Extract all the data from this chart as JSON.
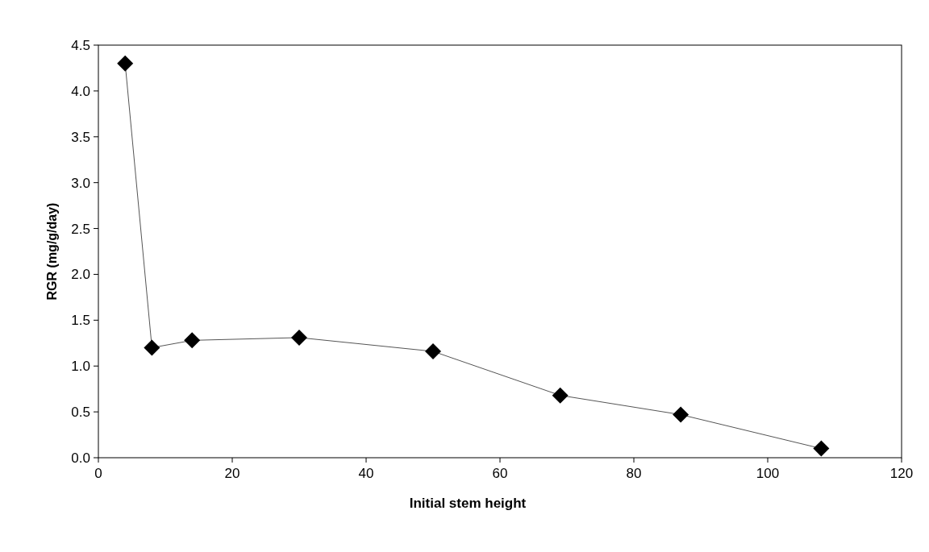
{
  "chart_data": {
    "type": "line",
    "xlabel": "Initial stem height",
    "ylabel": "RGR (mg/g/day)",
    "x": [
      4,
      8,
      14,
      30,
      50,
      69,
      87,
      108
    ],
    "series": [
      {
        "color": "#000000",
        "values": [
          4.3,
          1.2,
          1.28,
          1.31,
          1.16,
          0.68,
          0.47,
          0.1
        ]
      }
    ],
    "xlim": [
      0,
      120
    ],
    "xticks": [
      0,
      20,
      40,
      60,
      80,
      100,
      120
    ],
    "ylim": [
      0,
      4.5
    ],
    "yticks": [
      {
        "value": 0,
        "label": "0.0"
      },
      {
        "value": 0.5,
        "label": "0.5"
      },
      {
        "value": 1,
        "label": "1.0"
      },
      {
        "value": 1.5,
        "label": "1.5"
      },
      {
        "value": 2,
        "label": "2.0"
      },
      {
        "value": 2.5,
        "label": "2.5"
      },
      {
        "value": 3,
        "label": "3.0"
      },
      {
        "value": 3.5,
        "label": "3.5"
      },
      {
        "value": 4,
        "label": "4.0"
      },
      {
        "value": 4.5,
        "label": "4.5"
      }
    ],
    "marker": "diamond",
    "line_style": "solid",
    "grid": false
  }
}
